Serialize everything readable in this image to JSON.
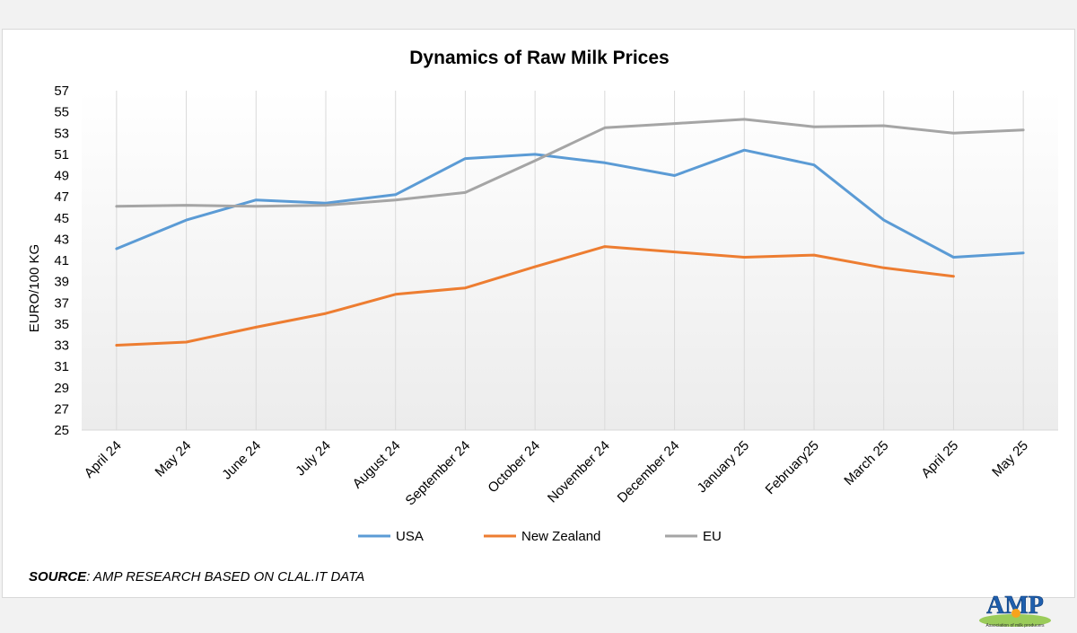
{
  "chart_data": {
    "type": "line",
    "title": "Dynamics of Raw Milk Prices",
    "ylabel": "EURO/100 KG",
    "xlabel": "",
    "ylim": [
      25,
      57
    ],
    "yticks": [
      25,
      27,
      29,
      31,
      33,
      35,
      37,
      39,
      41,
      43,
      45,
      47,
      49,
      51,
      53,
      55,
      57
    ],
    "categories": [
      "April 24",
      "May 24",
      "June 24",
      "July 24",
      "August 24",
      "September  24",
      "October 24",
      "November 24",
      "December 24",
      "January 25",
      "February25",
      "March 25",
      "April 25",
      "May 25"
    ],
    "series": [
      {
        "name": "USA",
        "color": "#5b9bd5",
        "values": [
          42.1,
          44.8,
          46.7,
          46.4,
          47.2,
          50.6,
          51.0,
          50.2,
          49.0,
          51.4,
          50.0,
          44.8,
          41.3,
          41.7
        ]
      },
      {
        "name": "New Zealand",
        "color": "#ed7d31",
        "values": [
          33.0,
          33.3,
          34.7,
          36.0,
          37.8,
          38.4,
          40.4,
          42.3,
          41.8,
          41.3,
          41.5,
          40.3,
          39.5,
          null
        ]
      },
      {
        "name": "EU",
        "color": "#a5a5a5",
        "values": [
          46.1,
          46.2,
          46.1,
          46.2,
          46.7,
          47.4,
          50.4,
          53.5,
          53.9,
          54.3,
          53.6,
          53.7,
          53.0,
          53.3
        ]
      }
    ],
    "grid": "vertical",
    "legend_position": "bottom"
  },
  "source": {
    "label": "SOURCE",
    "text": ": AMP RESEARCH BASED ON CLAL.IT DATA"
  },
  "logo": {
    "text": "AMP",
    "tagline": "Association of milk producers"
  }
}
